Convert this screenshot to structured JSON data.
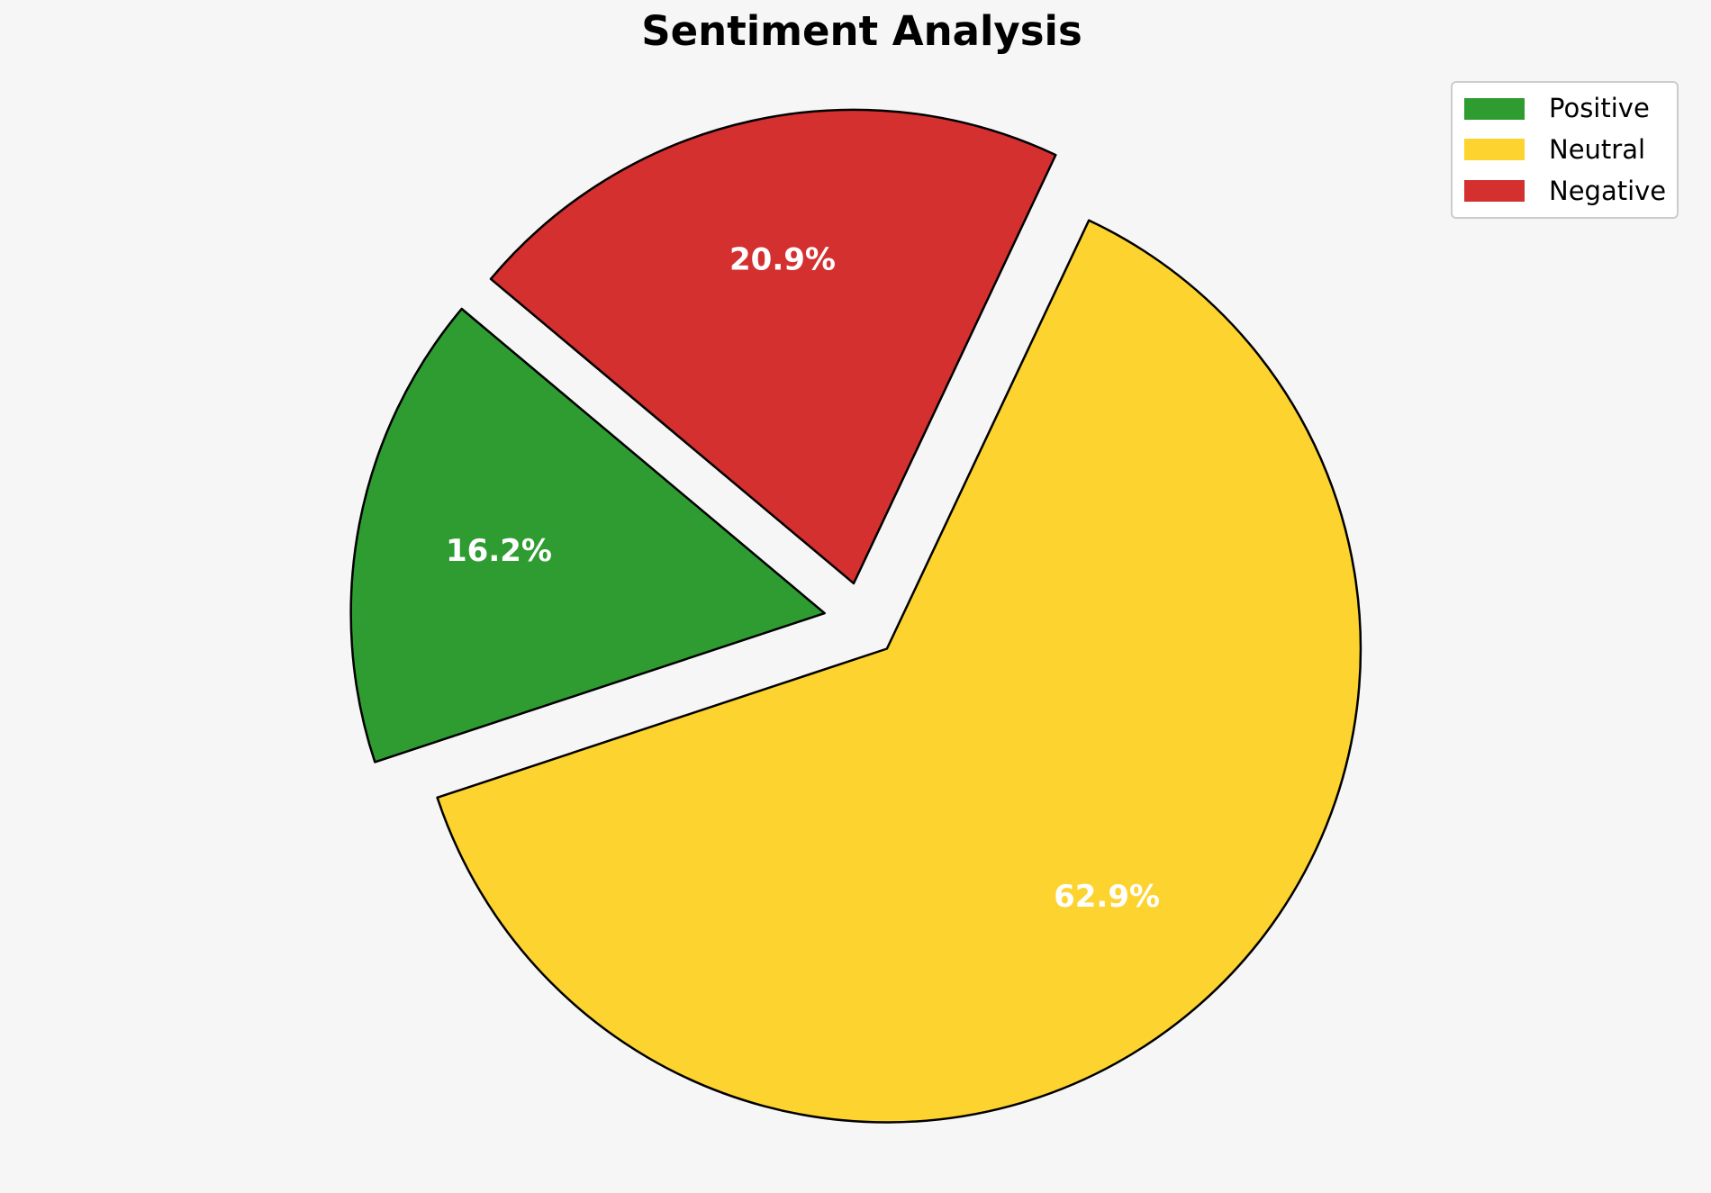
{
  "figure": {
    "background": "#F6F6F7"
  },
  "chart_data": {
    "type": "pie",
    "title": "Sentiment Analysis",
    "title_color": "#000000",
    "categories": [
      "Positive",
      "Neutral",
      "Negative"
    ],
    "values": [
      16.2,
      62.9,
      20.9
    ],
    "percent_labels": [
      "16.2%",
      "62.9%",
      "20.9%"
    ],
    "colors": [
      "#2E9C31",
      "#FCD32F",
      "#D3302F"
    ],
    "startangle": 140,
    "direction": "counterclockwise",
    "explode": [
      0.08,
      0.08,
      0.08
    ],
    "pctdistance": 0.7,
    "edge_color": "#000000",
    "edge_width": 2.5,
    "percent_label_color": "#FFFFFF",
    "legend": {
      "position": "upper right",
      "entries": [
        {
          "label": "Positive",
          "color": "#2E9C31"
        },
        {
          "label": "Neutral",
          "color": "#FCD32F"
        },
        {
          "label": "Negative",
          "color": "#D3302F"
        }
      ]
    }
  }
}
